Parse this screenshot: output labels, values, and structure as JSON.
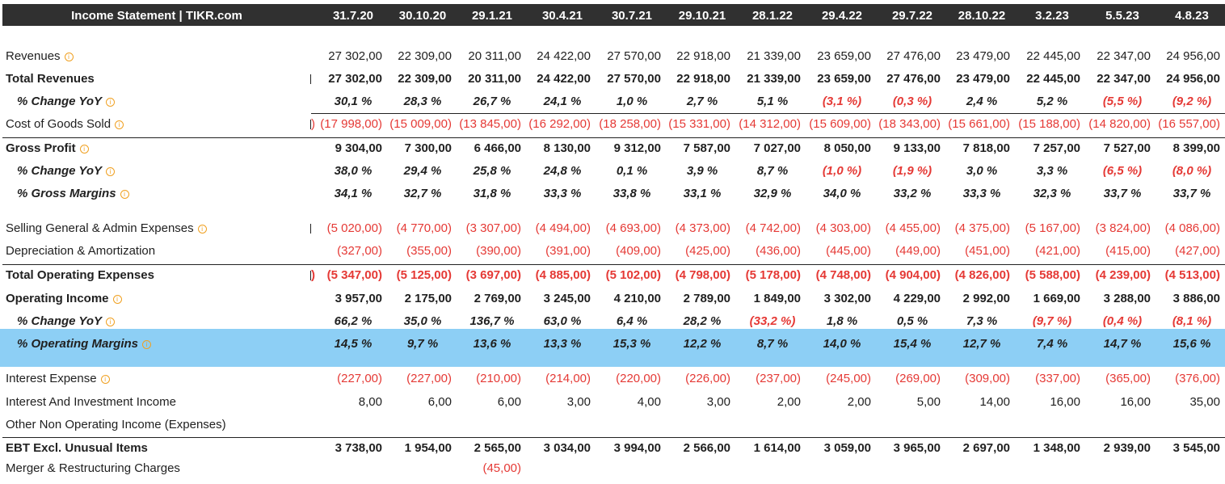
{
  "header": {
    "title": "Income Statement | TIKR.com",
    "dates": [
      "31.7.20",
      "30.10.20",
      "29.1.21",
      "30.4.21",
      "30.7.21",
      "29.10.21",
      "28.1.22",
      "29.4.22",
      "29.7.22",
      "28.10.22",
      "3.2.23",
      "5.5.23",
      "4.8.23"
    ]
  },
  "rows": [
    {
      "label": "Revenues",
      "info": true,
      "style": "normal",
      "values": [
        "27 302,00",
        "22 309,00",
        "20 311,00",
        "24 422,00",
        "27 570,00",
        "22 918,00",
        "21 339,00",
        "23 659,00",
        "27 476,00",
        "23 479,00",
        "22 445,00",
        "22 347,00",
        "24 956,00"
      ]
    },
    {
      "label": "Total Revenues",
      "info": false,
      "style": "bold",
      "values": [
        "27 302,00",
        "22 309,00",
        "20 311,00",
        "24 422,00",
        "27 570,00",
        "22 918,00",
        "21 339,00",
        "23 659,00",
        "27 476,00",
        "23 479,00",
        "22 445,00",
        "22 347,00",
        "24 956,00"
      ]
    },
    {
      "label": "% Change YoY",
      "info": true,
      "style": "pct",
      "values": [
        "30,1 %",
        "28,3 %",
        "26,7 %",
        "24,1 %",
        "1,0 %",
        "2,7 %",
        "5,1 %",
        "(3,1 %)",
        "(0,3 %)",
        "2,4 %",
        "5,2 %",
        "(5,5 %)",
        "(9,2 %)"
      ]
    },
    {
      "label": "Cost of Goods Sold",
      "info": true,
      "style": "normal",
      "values": [
        "(17 998,00)",
        "(15 009,00)",
        "(13 845,00)",
        "(16 292,00)",
        "(18 258,00)",
        "(15 331,00)",
        "(14 312,00)",
        "(15 609,00)",
        "(18 343,00)",
        "(15 661,00)",
        "(15 188,00)",
        "(14 820,00)",
        "(16 557,00)"
      ],
      "prefix": ")"
    },
    {
      "label": "Gross Profit",
      "info": true,
      "style": "bold",
      "values": [
        "9 304,00",
        "7 300,00",
        "6 466,00",
        "8 130,00",
        "9 312,00",
        "7 587,00",
        "7 027,00",
        "8 050,00",
        "9 133,00",
        "7 818,00",
        "7 257,00",
        "7 527,00",
        "8 399,00"
      ]
    },
    {
      "label": "% Change YoY",
      "info": true,
      "style": "pct",
      "values": [
        "38,0 %",
        "29,4 %",
        "25,8 %",
        "24,8 %",
        "0,1 %",
        "3,9 %",
        "8,7 %",
        "(1,0 %)",
        "(1,9 %)",
        "3,0 %",
        "3,3 %",
        "(6,5 %)",
        "(8,0 %)"
      ]
    },
    {
      "label": "% Gross Margins",
      "info": true,
      "style": "pct",
      "values": [
        "34,1 %",
        "32,7 %",
        "31,8 %",
        "33,3 %",
        "33,8 %",
        "33,1 %",
        "32,9 %",
        "34,0 %",
        "33,2 %",
        "33,3 %",
        "32,3 %",
        "33,7 %",
        "33,7 %"
      ]
    },
    {
      "label": "Selling General & Admin Expenses",
      "info": true,
      "style": "normal",
      "values": [
        "(5 020,00)",
        "(4 770,00)",
        "(3 307,00)",
        "(4 494,00)",
        "(4 693,00)",
        "(4 373,00)",
        "(4 742,00)",
        "(4 303,00)",
        "(4 455,00)",
        "(4 375,00)",
        "(5 167,00)",
        "(3 824,00)",
        "(4 086,00)"
      ]
    },
    {
      "label": "Depreciation & Amortization",
      "info": false,
      "style": "normal",
      "values": [
        "(327,00)",
        "(355,00)",
        "(390,00)",
        "(391,00)",
        "(409,00)",
        "(425,00)",
        "(436,00)",
        "(445,00)",
        "(449,00)",
        "(451,00)",
        "(421,00)",
        "(415,00)",
        "(427,00)"
      ]
    },
    {
      "label": "Total Operating Expenses",
      "info": false,
      "style": "bold",
      "values": [
        "(5 347,00)",
        "(5 125,00)",
        "(3 697,00)",
        "(4 885,00)",
        "(5 102,00)",
        "(4 798,00)",
        "(5 178,00)",
        "(4 748,00)",
        "(4 904,00)",
        "(4 826,00)",
        "(5 588,00)",
        "(4 239,00)",
        "(4 513,00)"
      ],
      "prefix": ")"
    },
    {
      "label": "Operating Income",
      "info": true,
      "style": "bold",
      "values": [
        "3 957,00",
        "2 175,00",
        "2 769,00",
        "3 245,00",
        "4 210,00",
        "2 789,00",
        "1 849,00",
        "3 302,00",
        "4 229,00",
        "2 992,00",
        "1 669,00",
        "3 288,00",
        "3 886,00"
      ]
    },
    {
      "label": "% Change YoY",
      "info": true,
      "style": "pct",
      "values": [
        "66,2 %",
        "35,0 %",
        "136,7 %",
        "63,0 %",
        "6,4 %",
        "28,2 %",
        "(33,2 %)",
        "1,8 %",
        "0,5 %",
        "7,3 %",
        "(9,7 %)",
        "(0,4 %)",
        "(8,1 %)"
      ]
    },
    {
      "label": "% Operating Margins",
      "info": true,
      "style": "pct",
      "values": [
        "14,5 %",
        "9,7 %",
        "13,6 %",
        "13,3 %",
        "15,3 %",
        "12,2 %",
        "8,7 %",
        "14,0 %",
        "15,4 %",
        "12,7 %",
        "7,4 %",
        "14,7 %",
        "15,6 %"
      ]
    },
    {
      "label": "Interest Expense",
      "info": true,
      "style": "normal",
      "values": [
        "(227,00)",
        "(227,00)",
        "(210,00)",
        "(214,00)",
        "(220,00)",
        "(226,00)",
        "(237,00)",
        "(245,00)",
        "(269,00)",
        "(309,00)",
        "(337,00)",
        "(365,00)",
        "(376,00)"
      ]
    },
    {
      "label": "Interest And Investment Income",
      "info": false,
      "style": "normal",
      "values": [
        "8,00",
        "6,00",
        "6,00",
        "3,00",
        "4,00",
        "3,00",
        "2,00",
        "2,00",
        "5,00",
        "14,00",
        "16,00",
        "16,00",
        "35,00"
      ]
    },
    {
      "label": "Other Non Operating Income (Expenses)",
      "info": false,
      "style": "normal",
      "values": [
        "",
        "",
        "",
        "",
        "",
        "",
        "",
        "",
        "",
        "",
        "",
        "",
        ""
      ]
    },
    {
      "label": "EBT Excl. Unusual Items",
      "info": false,
      "style": "bold",
      "values": [
        "3 738,00",
        "1 954,00",
        "2 565,00",
        "3 034,00",
        "3 994,00",
        "2 566,00",
        "1 614,00",
        "3 059,00",
        "3 965,00",
        "2 697,00",
        "1 348,00",
        "2 939,00",
        "3 545,00"
      ]
    },
    {
      "label": "Merger & Restructuring Charges",
      "info": false,
      "style": "normal",
      "values": [
        "",
        "",
        "(45,00)",
        "",
        "",
        "",
        "",
        "",
        "",
        "",
        "",
        "",
        ""
      ]
    }
  ],
  "colors": {
    "header_bg": "#303030",
    "negative": "#e53935",
    "highlight": "#8dcff5",
    "info": "#f0a020"
  }
}
